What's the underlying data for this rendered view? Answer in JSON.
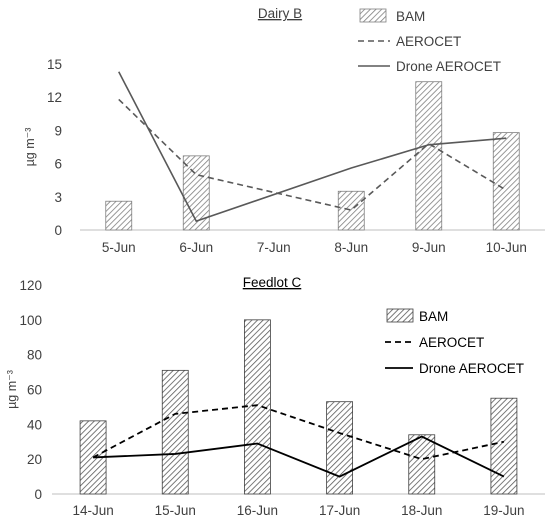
{
  "chart_data": [
    {
      "type": "bar",
      "title": "Dairy B",
      "ylabel": "µg m⁻³",
      "ylim": [
        0,
        15
      ],
      "yticks": [
        0,
        3,
        6,
        9,
        12,
        15
      ],
      "categories": [
        "5-Jun",
        "6-Jun",
        "7-Jun",
        "8-Jun",
        "9-Jun",
        "10-Jun"
      ],
      "grid": false,
      "legend_position": "top-right",
      "colors": {
        "text": "#404040",
        "line": "#595959"
      },
      "series": [
        {
          "name": "BAM",
          "kind": "bar",
          "style": "hatched",
          "values": [
            2.6,
            6.7,
            null,
            3.5,
            13.4,
            8.8
          ]
        },
        {
          "name": "AEROCET",
          "kind": "line",
          "style": "dashed",
          "values": [
            11.8,
            5.0,
            null,
            1.8,
            7.8,
            3.6
          ]
        },
        {
          "name": "Drone AEROCET",
          "kind": "line",
          "style": "solid",
          "values": [
            14.3,
            0.8,
            null,
            5.6,
            7.7,
            8.3
          ]
        }
      ]
    },
    {
      "type": "bar",
      "title": "Feedlot C",
      "ylabel": "µg m⁻³",
      "ylim": [
        0,
        120
      ],
      "yticks": [
        0,
        20,
        40,
        60,
        80,
        100,
        120
      ],
      "categories": [
        "14-Jun",
        "15-Jun",
        "16-Jun",
        "17-Jun",
        "18-Jun",
        "19-Jun"
      ],
      "grid": false,
      "legend_position": "right",
      "colors": {
        "text": "#404040",
        "line": "#000000"
      },
      "series": [
        {
          "name": "BAM",
          "kind": "bar",
          "style": "hatched",
          "values": [
            42,
            71,
            100,
            53,
            34,
            55
          ]
        },
        {
          "name": "AEROCET",
          "kind": "line",
          "style": "dashed",
          "values": [
            21,
            46,
            51,
            35,
            20,
            30
          ]
        },
        {
          "name": "Drone AEROCET",
          "kind": "line",
          "style": "solid",
          "values": [
            21,
            23,
            29,
            10,
            33,
            10
          ]
        }
      ]
    }
  ]
}
